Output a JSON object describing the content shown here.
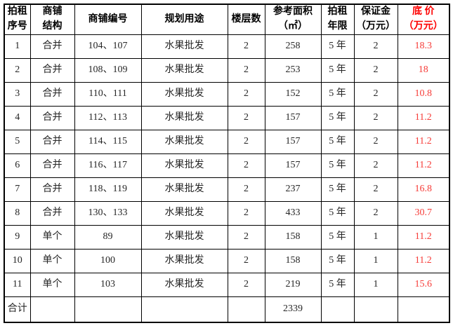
{
  "colors": {
    "text": "#262626",
    "border": "#000000",
    "price_red": "#fe0000",
    "background": "#ffffff"
  },
  "table": {
    "headers": [
      "拍租\n序号",
      "商铺\n结构",
      "商铺编号",
      "规划用途",
      "楼层数",
      "参考面积\n（㎡）",
      "拍租\n年限",
      "保证金\n（万元）",
      "底 价\n（万元）"
    ],
    "rows": [
      {
        "cells": [
          "1",
          "合并",
          "104、107",
          "水果批发",
          "2",
          "258",
          "5 年",
          "2",
          "18.3"
        ]
      },
      {
        "cells": [
          "2",
          "合并",
          "108、109",
          "水果批发",
          "2",
          "253",
          "5 年",
          "2",
          "18"
        ]
      },
      {
        "cells": [
          "3",
          "合并",
          "110、111",
          "水果批发",
          "2",
          "152",
          "5 年",
          "2",
          "10.8"
        ]
      },
      {
        "cells": [
          "4",
          "合并",
          "112、113",
          "水果批发",
          "2",
          "157",
          "5 年",
          "2",
          "11.2"
        ]
      },
      {
        "cells": [
          "5",
          "合并",
          "114、115",
          "水果批发",
          "2",
          "157",
          "5 年",
          "2",
          "11.2"
        ]
      },
      {
        "cells": [
          "6",
          "合并",
          "116、117",
          "水果批发",
          "2",
          "157",
          "5 年",
          "2",
          "11.2"
        ]
      },
      {
        "cells": [
          "7",
          "合并",
          "118、119",
          "水果批发",
          "2",
          "237",
          "5 年",
          "2",
          "16.8"
        ]
      },
      {
        "cells": [
          "8",
          "合并",
          "130、133",
          "水果批发",
          "2",
          "433",
          "5 年",
          "2",
          "30.7"
        ]
      },
      {
        "cells": [
          "9",
          "单个",
          "89",
          "水果批发",
          "2",
          "158",
          "5 年",
          "1",
          "11.2"
        ]
      },
      {
        "cells": [
          "10",
          "单个",
          "100",
          "水果批发",
          "2",
          "158",
          "5 年",
          "1",
          "11.2"
        ]
      },
      {
        "cells": [
          "11",
          "单个",
          "103",
          "水果批发",
          "2",
          "219",
          "5 年",
          "1",
          "15.6"
        ]
      },
      {
        "cells": [
          "合计",
          "",
          "",
          "",
          "",
          "2339",
          "",
          "",
          ""
        ],
        "total": true
      }
    ]
  }
}
